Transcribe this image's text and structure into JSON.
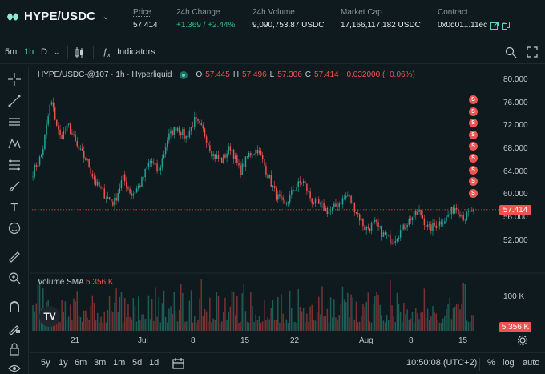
{
  "header": {
    "pair": "HYPE/USDC",
    "price_label": "Price",
    "price": "57.414",
    "change_label": "24h Change",
    "change": "+1.369 / +2.44%",
    "volume_label": "24h Volume",
    "volume": "9,090,753.87 USDC",
    "mcap_label": "Market Cap",
    "mcap": "17,166,117,182 USDC",
    "contract_label": "Contract",
    "contract": "0x0d01...11ec"
  },
  "toolbar": {
    "intervals": [
      "5m",
      "1h",
      "D"
    ],
    "active_interval": "1h",
    "indicators_label": "Indicators"
  },
  "legend": {
    "symbol": "HYPE/USDC-@107 · 1h · Hyperliquid",
    "o_label": "O",
    "o": "57.445",
    "h_label": "H",
    "h": "57.496",
    "l_label": "L",
    "l": "57.306",
    "c_label": "C",
    "c": "57.414",
    "change": "−0.032000 (−0.06%)",
    "volume_label": "Volume SMA",
    "volume_value": "5.356 K"
  },
  "price_tag": "57.414",
  "volume_tag": "5.356 K",
  "s_badge_label": "S",
  "bottom": {
    "ranges": [
      "5y",
      "1y",
      "6m",
      "3m",
      "1m",
      "5d",
      "1d"
    ],
    "time": "10:50:08 (UTC+2)",
    "percent": "%",
    "log": "log",
    "auto": "auto"
  },
  "colors": {
    "up": "#26a69a",
    "down": "#ef5350",
    "accent": "#59d5c2",
    "background": "#0f1a1f"
  },
  "chart_data": {
    "type": "candlestick",
    "y_ticks": [
      "80.000",
      "76.000",
      "72.000",
      "68.000",
      "64.000",
      "60.000",
      "56.000",
      "52.000"
    ],
    "volume_ticks": [
      "100 K"
    ],
    "x_ticks": [
      "21",
      "Jul",
      "8",
      "15",
      "22",
      "Aug",
      "8",
      "15"
    ],
    "ylim": [
      50,
      81
    ],
    "price_path": [
      [
        "21 (start)",
        64
      ],
      [
        "",
        67
      ],
      [
        "",
        76.5
      ],
      [
        "",
        70
      ],
      [
        "",
        72
      ],
      [
        "",
        68
      ],
      [
        "",
        66
      ],
      [
        "",
        62
      ],
      [
        "",
        60
      ],
      [
        "",
        58.5
      ],
      [
        "",
        63
      ],
      [
        "",
        60
      ],
      [
        "",
        62
      ],
      [
        "Jul",
        66
      ],
      [
        "",
        64
      ],
      [
        "",
        70
      ],
      [
        "",
        72
      ],
      [
        "",
        70
      ],
      [
        "",
        73
      ],
      [
        "",
        71
      ],
      [
        "8",
        67
      ],
      [
        "",
        66
      ],
      [
        "",
        68.5
      ],
      [
        "",
        64
      ],
      [
        "",
        67
      ],
      [
        "15",
        68
      ],
      [
        "",
        64
      ],
      [
        "",
        60
      ],
      [
        "",
        58
      ],
      [
        "",
        61
      ],
      [
        "22",
        62.5
      ],
      [
        "",
        59
      ],
      [
        "",
        58
      ],
      [
        "",
        57
      ],
      [
        "",
        58.5
      ],
      [
        "",
        60
      ],
      [
        "",
        57
      ],
      [
        "Aug",
        54
      ],
      [
        "",
        55
      ],
      [
        "",
        53
      ],
      [
        "",
        52
      ],
      [
        "",
        54
      ],
      [
        "",
        56
      ],
      [
        "8",
        57
      ],
      [
        "",
        54
      ],
      [
        "",
        55
      ],
      [
        "",
        56
      ],
      [
        "15",
        58
      ],
      [
        "",
        56
      ],
      [
        "end",
        57.414
      ]
    ],
    "last_price": 57.414,
    "sell_markers": 9
  }
}
